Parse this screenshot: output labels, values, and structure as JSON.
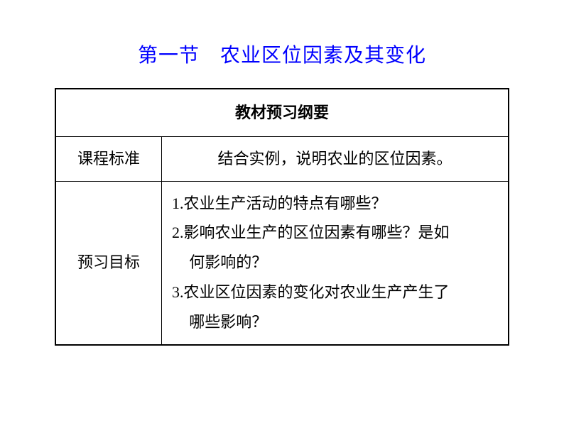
{
  "title": "第一节　农业区位因素及其变化",
  "table": {
    "header": "教材预习纲要",
    "rows": [
      {
        "label": "课程标准",
        "lines": [
          "结合实例，说明农业的区位因素。"
        ],
        "centered": true
      },
      {
        "label": "预习目标",
        "lines": [
          "1.农业生产活动的特点有哪些？",
          "2.影响农业生产的区位因素有哪些？是如",
          "何影响的？",
          "3.农业区位因素的变化对农业生产产生了",
          "哪些影响？"
        ],
        "centered": false,
        "indentIdx": [
          2,
          4
        ]
      }
    ]
  },
  "colors": {
    "title": "#0000ff",
    "text": "#000000",
    "border": "#000000",
    "background": "#ffffff"
  },
  "fontsize": {
    "title": 28,
    "cell": 22
  }
}
